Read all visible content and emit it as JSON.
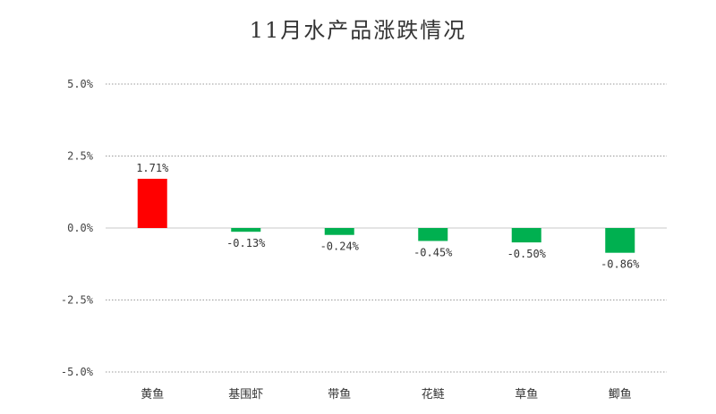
{
  "chart_data": {
    "type": "bar",
    "title": "11月水产品涨跌情况",
    "categories": [
      "黄鱼",
      "基围虾",
      "带鱼",
      "花鲢",
      "草鱼",
      "鲫鱼"
    ],
    "values": [
      1.71,
      -0.13,
      -0.24,
      -0.45,
      -0.5,
      -0.86
    ],
    "value_labels": [
      "1.71%",
      "-0.13%",
      "-0.24%",
      "-0.45%",
      "-0.50%",
      "-0.86%"
    ],
    "ylim": [
      -5.0,
      5.0
    ],
    "yticks": [
      5.0,
      2.5,
      0.0,
      -2.5,
      -5.0
    ],
    "ytick_labels": [
      "5.0%",
      "2.5%",
      "0.0%",
      "-2.5%",
      "-5.0%"
    ],
    "xlabel": "",
    "ylabel": "",
    "grid": true,
    "colors": {
      "positive": "#ff0000",
      "negative": "#00b050"
    }
  }
}
